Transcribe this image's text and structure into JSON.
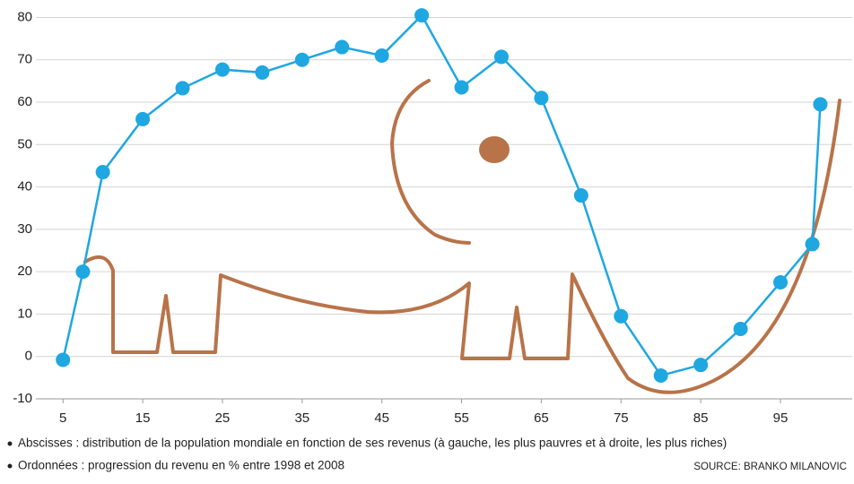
{
  "chart_data": {
    "type": "line",
    "x": [
      5,
      7.5,
      10,
      15,
      20,
      25,
      30,
      35,
      40,
      45,
      50,
      55,
      60,
      65,
      70,
      75,
      80,
      85,
      90,
      95,
      99,
      100
    ],
    "values": [
      -0.8,
      20,
      43.5,
      56,
      63.3,
      67.7,
      67,
      70,
      73,
      71,
      80.5,
      63.5,
      70.7,
      61,
      38,
      9.5,
      -4.5,
      -2,
      6.5,
      17.5,
      26.5,
      59.5
    ],
    "color": "#1ea7e1",
    "xlim": [
      1.6,
      104
    ],
    "ylim": [
      -10,
      82
    ],
    "xticks": [
      5,
      15,
      25,
      35,
      45,
      55,
      65,
      75,
      85,
      95
    ],
    "yticks": [
      -10,
      0,
      10,
      20,
      30,
      40,
      50,
      60,
      70,
      80
    ],
    "grid": true,
    "notes": [
      "Abscisses : distribution de la population mondiale en fonction de ses revenus (à gauche, les plus pauvres et à droite, les plus riches)",
      "Ordonnées : progression du revenu en % entre 1998 et 2008"
    ],
    "source": "SOURCE: BRANKO MILANOVIC"
  }
}
